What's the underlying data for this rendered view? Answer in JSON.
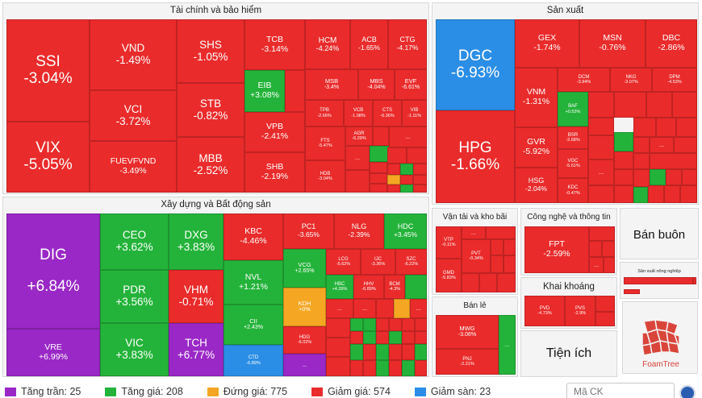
{
  "sections": {
    "finance": "Tài chính và bảo hiểm",
    "manufacturing": "Sản xuất",
    "construction": "Xây dựng và Bất động sản",
    "transport": "Vận tải và kho bãi",
    "tech": "Công nghệ và thông tin",
    "wholesale": "Bán buôn",
    "agri_small": "Sản xuất nông nghiệp",
    "mining": "Khai khoáng",
    "retail": "Bán lẻ",
    "utilities": "Tiện ích"
  },
  "stocks": {
    "SSI": [
      "SSI",
      "-3.04%"
    ],
    "VIX": [
      "VIX",
      "-5.05%"
    ],
    "VND": [
      "VND",
      "-1.49%"
    ],
    "VCI": [
      "VCI",
      "-3.72%"
    ],
    "FUEVFVND": [
      "FUEVFVND",
      "-3.49%"
    ],
    "SHS": [
      "SHS",
      "-1.05%"
    ],
    "STB": [
      "STB",
      "-0.82%"
    ],
    "MBB": [
      "MBB",
      "-2.52%"
    ],
    "TCB": [
      "TCB",
      "-3.14%"
    ],
    "EIB": [
      "EIB",
      "+3.08%"
    ],
    "VPB": [
      "VPB",
      "-2.41%"
    ],
    "SHB": [
      "SHB",
      "-2.19%"
    ],
    "HCM": [
      "HCM",
      "-4.24%"
    ],
    "ACB": [
      "ACB",
      "-1.65%"
    ],
    "CTG": [
      "CTG",
      "-4.17%"
    ],
    "MSB": [
      "MSB",
      "-3.4%"
    ],
    "MBS": [
      "MBS",
      "-4.04%"
    ],
    "EVF": [
      "EVF",
      "-6.61%"
    ],
    "TPB": [
      "TPB",
      "-2.66%"
    ],
    "VCB": [
      "VCB",
      "-1.08%"
    ],
    "CTS": [
      "CTS",
      "-6.36%"
    ],
    "VIB": [
      "VIB",
      "-1.11%"
    ],
    "FTS": [
      "FTS",
      "-5.47%"
    ],
    "AGR": [
      "AGR",
      "-6.29%"
    ],
    "HDB": [
      "HDB",
      "-3.04%"
    ],
    "DGC": [
      "DGC",
      "-6.93%"
    ],
    "HPG": [
      "HPG",
      "-1.66%"
    ],
    "GEX": [
      "GEX",
      "-1.74%"
    ],
    "MSN": [
      "MSN",
      "-0.76%"
    ],
    "DBC": [
      "DBC",
      "-2.86%"
    ],
    "VNM": [
      "VNM",
      "-1.31%"
    ],
    "GVR": [
      "GVR",
      "-5.92%"
    ],
    "HSG": [
      "HSG",
      "-2.04%"
    ],
    "DCM": [
      "DCM",
      "-3.94%"
    ],
    "NKG": [
      "NKG",
      "-3.07%"
    ],
    "DPM": [
      "DPM",
      "-4.53%"
    ],
    "BAF": [
      "BAF",
      "+0.53%"
    ],
    "BSR": [
      "BSR",
      "-2.68%"
    ],
    "VGC": [
      "VGC",
      "-5.61%"
    ],
    "KDC": [
      "KDC",
      "-0.47%"
    ],
    "DIG": [
      "DIG",
      "+6.84%"
    ],
    "VRE": [
      "VRE",
      "+6.99%"
    ],
    "CEO": [
      "CEO",
      "+3.62%"
    ],
    "PDR": [
      "PDR",
      "+3.56%"
    ],
    "VIC": [
      "VIC",
      "+3.83%"
    ],
    "DXG": [
      "DXG",
      "+3.83%"
    ],
    "VHM": [
      "VHM",
      "-0.71%"
    ],
    "TCH": [
      "TCH",
      "+6.77%"
    ],
    "KBC": [
      "KBC",
      "-4.46%"
    ],
    "NVL": [
      "NVL",
      "+1.21%"
    ],
    "CII": [
      "CII",
      "+2.43%"
    ],
    "CTD": [
      "CTD",
      "-6.89%"
    ],
    "PC1": [
      "PC1",
      "-3.65%"
    ],
    "NLG": [
      "NLG",
      "-2.39%"
    ],
    "HDC": [
      "HDC",
      "+3.45%"
    ],
    "VCG": [
      "VCG",
      "+2.65%"
    ],
    "KDH": [
      "KDH",
      "+0%"
    ],
    "HDG": [
      "HDG",
      "-6.02%"
    ],
    "LCG": [
      "LCG",
      "-5.62%"
    ],
    "IJC": [
      "IJC",
      "-3.36%"
    ],
    "SZC": [
      "SZC",
      "-6.22%"
    ],
    "HBC": [
      "HBC",
      "+4.39%"
    ],
    "HHV": [
      "HHV",
      "-6.89%"
    ],
    "BCM": [
      "BCM",
      "-4.3%"
    ],
    "VTP": [
      "VTP",
      "-0.11%"
    ],
    "PVT": [
      "PVT",
      "-0.34%"
    ],
    "GMD": [
      "GMD",
      "-5.83%"
    ],
    "FPT": [
      "FPT",
      "-2.59%"
    ],
    "PVD": [
      "PVD",
      "-4.73%"
    ],
    "PVS": [
      "PVS",
      "-2.9%"
    ],
    "MWG": [
      "MWG",
      "-3.06%"
    ],
    "PNJ": [
      "PNJ",
      "-2.21%"
    ]
  },
  "more": "...",
  "legend": [
    {
      "label": "Tăng trần: 25",
      "color": "#9a28c6"
    },
    {
      "label": "Tăng giá: 208",
      "color": "#24b33a"
    },
    {
      "label": "Đứng giá: 775",
      "color": "#f5a623"
    },
    {
      "label": "Giảm giá: 574",
      "color": "#ea2b2b"
    },
    {
      "label": "Giảm sàn: 23",
      "color": "#2b8ee6"
    }
  ],
  "search": {
    "placeholder": "Mã CK"
  },
  "logo": {
    "text": "FoamTree"
  }
}
